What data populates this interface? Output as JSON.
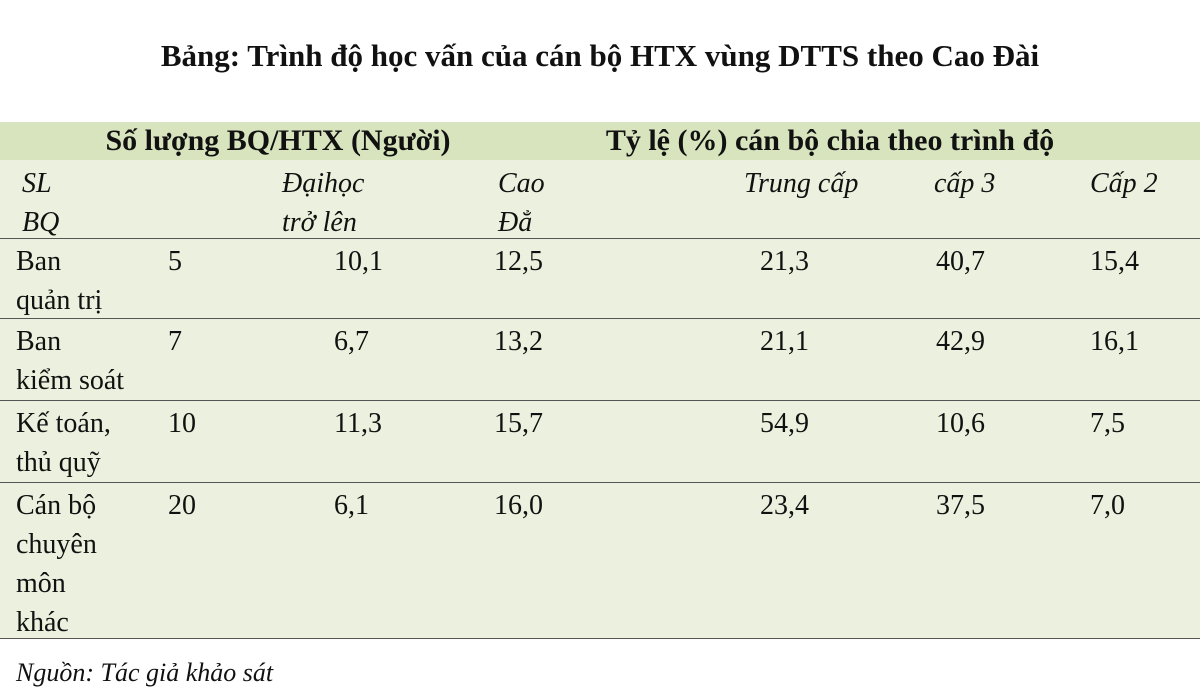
{
  "title": "Bảng: Trình độ học vấn của cán bộ HTX vùng DTTS theo Cao Đài",
  "table": {
    "group_headers": [
      "Số lượng BQ/HTX (Người)",
      "Tỷ lệ (%) cán bộ chia theo trình độ"
    ],
    "headers": [
      [
        "SL",
        "BQ"
      ],
      [
        "Đạihọc",
        "trở lên"
      ],
      [
        "Cao",
        "Đẳ"
      ],
      [
        "Trung cấp"
      ],
      [
        "cấp 3"
      ],
      [
        "Cấp 2"
      ]
    ],
    "rows": [
      [
        [
          "Ban",
          "quản trị"
        ],
        "5",
        "10,1",
        "12,5",
        "21,3",
        "40,7",
        "15,4"
      ],
      [
        [
          "Ban",
          "kiểm soát"
        ],
        "7",
        "6,7",
        "13,2",
        "21,1",
        "42,9",
        "16,1"
      ],
      [
        [
          "Kế toán,",
          "thủ quỹ"
        ],
        "10",
        "11,3",
        "15,7",
        "54,9",
        "10,6",
        "7,5"
      ],
      [
        [
          "Cán bộ",
          "chuyên",
          "môn",
          "khác"
        ],
        "20",
        "6,1",
        "16,0",
        "23,4",
        "37,5",
        "7,0"
      ]
    ]
  },
  "source": "Nguồn: Tác giả khảo sát"
}
